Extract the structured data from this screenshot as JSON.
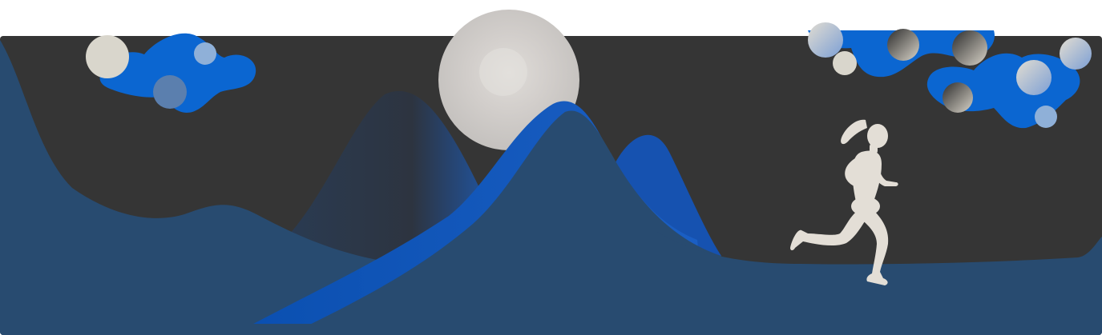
{
  "scene": {
    "subject": "woman-running-at-night",
    "colors": {
      "page_background": "#ffffff",
      "sky": "#353535",
      "hill_dark_navy": "#284b70",
      "hill_bright_blue": "#0b55b8",
      "moon": "#d9d6d2",
      "runner": "#e3ded6",
      "blob_blue": "#0b66d1",
      "orb_light": "#d9d6cc",
      "orb_pale_blue": "#8fb0d8"
    },
    "elements": [
      "sky-panel",
      "moon",
      "mountains",
      "hills",
      "runner",
      "decorative-clouds"
    ]
  }
}
